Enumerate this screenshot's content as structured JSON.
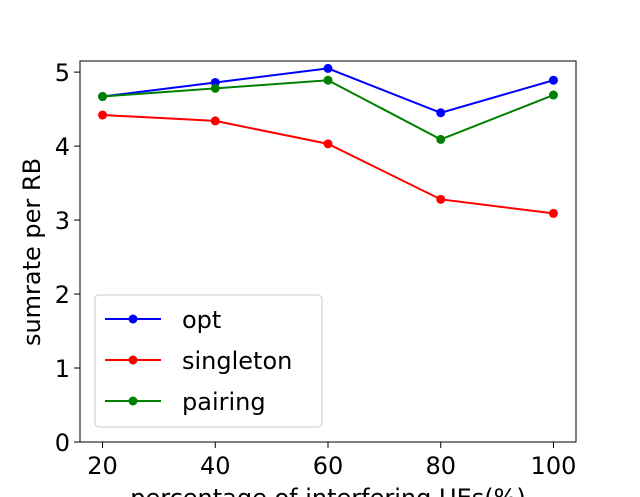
{
  "chart_data": {
    "type": "line",
    "title": "",
    "xlabel": "percentage of interfering UEs(%)",
    "ylabel": "sumrate per RB",
    "x": [
      20,
      40,
      60,
      80,
      100
    ],
    "xticks": [
      20,
      40,
      60,
      80,
      100
    ],
    "yticks": [
      0,
      1,
      2,
      3,
      4,
      5
    ],
    "xlim": [
      16,
      104
    ],
    "ylim": [
      0,
      5.15
    ],
    "grid": false,
    "legend_position": "lower-left",
    "series": [
      {
        "name": "opt",
        "color": "#0000ff",
        "values": [
          4.67,
          4.86,
          5.05,
          4.45,
          4.89
        ]
      },
      {
        "name": "singleton",
        "color": "#ff0000",
        "values": [
          4.42,
          4.34,
          4.03,
          3.28,
          3.09
        ]
      },
      {
        "name": "pairing",
        "color": "#008000",
        "values": [
          4.67,
          4.78,
          4.89,
          4.09,
          4.69
        ]
      }
    ]
  }
}
